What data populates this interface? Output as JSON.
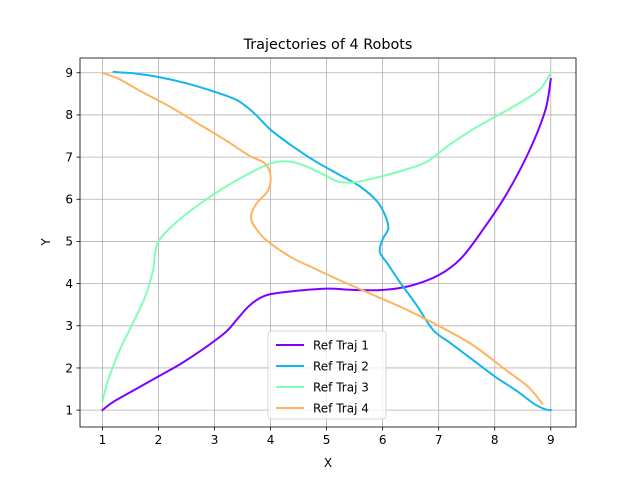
{
  "chart_data": {
    "type": "line",
    "title": "Trajectories of 4 Robots",
    "xlabel": "X",
    "ylabel": "Y",
    "xlim": [
      0.6,
      9.45
    ],
    "ylim": [
      0.6,
      9.35
    ],
    "xticks": [
      "1",
      "2",
      "3",
      "4",
      "5",
      "6",
      "7",
      "8",
      "9"
    ],
    "yticks": [
      "1",
      "2",
      "3",
      "4",
      "5",
      "6",
      "7",
      "8",
      "9"
    ],
    "grid": true,
    "legend_position": "lower center",
    "series": [
      {
        "name": "Ref Traj 1",
        "color": "#8000ff",
        "points": [
          [
            1.0,
            1.0
          ],
          [
            1.2,
            1.2
          ],
          [
            1.6,
            1.5
          ],
          [
            2.0,
            1.8
          ],
          [
            2.4,
            2.1
          ],
          [
            2.8,
            2.45
          ],
          [
            3.2,
            2.85
          ],
          [
            3.4,
            3.15
          ],
          [
            3.6,
            3.45
          ],
          [
            3.8,
            3.65
          ],
          [
            4.0,
            3.75
          ],
          [
            4.4,
            3.82
          ],
          [
            5.0,
            3.88
          ],
          [
            5.5,
            3.85
          ],
          [
            6.0,
            3.85
          ],
          [
            6.5,
            3.95
          ],
          [
            7.0,
            4.2
          ],
          [
            7.4,
            4.6
          ],
          [
            7.8,
            5.3
          ],
          [
            8.2,
            6.1
          ],
          [
            8.6,
            7.1
          ],
          [
            8.9,
            8.1
          ],
          [
            9.0,
            8.85
          ]
        ]
      },
      {
        "name": "Ref Traj 2",
        "color": "#13b6ea",
        "points": [
          [
            1.2,
            9.02
          ],
          [
            1.6,
            8.98
          ],
          [
            2.0,
            8.9
          ],
          [
            2.5,
            8.75
          ],
          [
            3.0,
            8.55
          ],
          [
            3.4,
            8.35
          ],
          [
            3.7,
            8.05
          ],
          [
            4.0,
            7.65
          ],
          [
            4.4,
            7.25
          ],
          [
            4.8,
            6.9
          ],
          [
            5.2,
            6.6
          ],
          [
            5.6,
            6.3
          ],
          [
            5.9,
            5.95
          ],
          [
            6.05,
            5.6
          ],
          [
            6.1,
            5.3
          ],
          [
            6.0,
            5.05
          ],
          [
            5.95,
            4.75
          ],
          [
            6.1,
            4.45
          ],
          [
            6.3,
            4.05
          ],
          [
            6.6,
            3.5
          ],
          [
            6.9,
            2.9
          ],
          [
            7.2,
            2.6
          ],
          [
            7.6,
            2.2
          ],
          [
            8.0,
            1.8
          ],
          [
            8.4,
            1.45
          ],
          [
            8.7,
            1.15
          ],
          [
            8.9,
            1.02
          ],
          [
            9.0,
            1.0
          ]
        ]
      },
      {
        "name": "Ref Traj 3",
        "color": "#80ffb4",
        "points": [
          [
            1.0,
            1.2
          ],
          [
            1.1,
            1.7
          ],
          [
            1.3,
            2.4
          ],
          [
            1.5,
            2.95
          ],
          [
            1.75,
            3.65
          ],
          [
            1.9,
            4.3
          ],
          [
            1.95,
            4.8
          ],
          [
            2.05,
            5.1
          ],
          [
            2.4,
            5.55
          ],
          [
            2.8,
            5.95
          ],
          [
            3.2,
            6.3
          ],
          [
            3.6,
            6.6
          ],
          [
            4.0,
            6.85
          ],
          [
            4.3,
            6.9
          ],
          [
            4.6,
            6.8
          ],
          [
            5.0,
            6.55
          ],
          [
            5.2,
            6.42
          ],
          [
            5.5,
            6.4
          ],
          [
            6.0,
            6.55
          ],
          [
            6.4,
            6.7
          ],
          [
            6.8,
            6.9
          ],
          [
            7.2,
            7.3
          ],
          [
            7.6,
            7.65
          ],
          [
            8.0,
            7.95
          ],
          [
            8.4,
            8.25
          ],
          [
            8.8,
            8.6
          ],
          [
            9.0,
            9.0
          ]
        ]
      },
      {
        "name": "Ref Traj 4",
        "color": "#ffb360",
        "points": [
          [
            1.0,
            9.0
          ],
          [
            1.3,
            8.85
          ],
          [
            1.7,
            8.55
          ],
          [
            2.2,
            8.2
          ],
          [
            2.7,
            7.8
          ],
          [
            3.2,
            7.4
          ],
          [
            3.6,
            7.05
          ],
          [
            3.9,
            6.85
          ],
          [
            4.0,
            6.55
          ],
          [
            3.95,
            6.2
          ],
          [
            3.75,
            5.9
          ],
          [
            3.65,
            5.55
          ],
          [
            3.8,
            5.2
          ],
          [
            4.0,
            4.95
          ],
          [
            4.4,
            4.6
          ],
          [
            4.8,
            4.35
          ],
          [
            5.2,
            4.1
          ],
          [
            5.8,
            3.75
          ],
          [
            6.4,
            3.4
          ],
          [
            7.0,
            3.0
          ],
          [
            7.6,
            2.55
          ],
          [
            8.2,
            1.95
          ],
          [
            8.6,
            1.55
          ],
          [
            8.85,
            1.15
          ]
        ]
      }
    ]
  }
}
